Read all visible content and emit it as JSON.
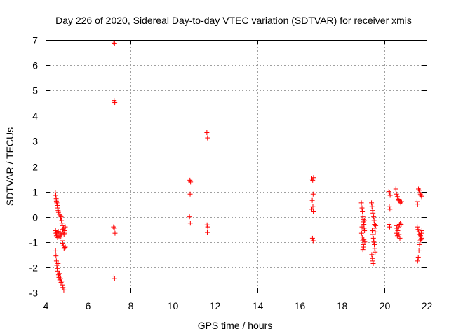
{
  "chart_data": {
    "type": "scatter",
    "title": "Day 226 of 2020, Sidereal Day-to-day VTEC variation (SDTVAR) for receiver xmis",
    "xlabel": "GPS time / hours",
    "ylabel": "SDTVAR / TECUs",
    "xlim": [
      4,
      22
    ],
    "ylim": [
      -3,
      7
    ],
    "xticks": [
      "4",
      "6",
      "8",
      "10",
      "12",
      "14",
      "16",
      "18",
      "20",
      "22"
    ],
    "yticks": [
      "-3",
      "-2",
      "-1",
      "0",
      "1",
      "2",
      "3",
      "4",
      "5",
      "6",
      "7"
    ],
    "grid": true,
    "marker": "+",
    "color": "#ff0000",
    "series": [
      {
        "name": "SDTVAR",
        "points": [
          [
            4.46,
            0.95
          ],
          [
            4.48,
            0.85
          ],
          [
            4.5,
            0.72
          ],
          [
            4.51,
            0.62
          ],
          [
            4.53,
            0.55
          ],
          [
            4.55,
            0.45
          ],
          [
            4.57,
            0.35
          ],
          [
            4.59,
            0.25
          ],
          [
            4.61,
            0.18
          ],
          [
            4.47,
            -0.55
          ],
          [
            4.49,
            -0.65
          ],
          [
            4.51,
            -0.75
          ],
          [
            4.53,
            -0.62
          ],
          [
            4.56,
            -0.82
          ],
          [
            4.58,
            -0.7
          ],
          [
            4.6,
            -0.58
          ],
          [
            4.63,
            -0.78
          ],
          [
            4.47,
            -1.35
          ],
          [
            4.49,
            -1.55
          ],
          [
            4.51,
            -1.75
          ],
          [
            4.53,
            -1.92
          ],
          [
            4.55,
            -2.05
          ],
          [
            4.57,
            -2.15
          ],
          [
            4.59,
            -1.85
          ],
          [
            4.61,
            -2.3
          ],
          [
            4.63,
            -2.4
          ],
          [
            4.65,
            -2.25
          ],
          [
            4.67,
            -2.5
          ],
          [
            4.69,
            -2.35
          ],
          [
            4.71,
            -2.45
          ],
          [
            4.73,
            -2.6
          ],
          [
            4.76,
            -2.55
          ],
          [
            4.79,
            -2.7
          ],
          [
            4.82,
            -2.8
          ],
          [
            4.86,
            -2.9
          ],
          [
            4.66,
            0.1
          ],
          [
            4.69,
            0.05
          ],
          [
            4.71,
            -0.05
          ],
          [
            4.73,
            0.0
          ],
          [
            4.75,
            -0.15
          ],
          [
            4.77,
            -0.25
          ],
          [
            4.79,
            -0.35
          ],
          [
            4.81,
            -0.5
          ],
          [
            4.83,
            -0.6
          ],
          [
            4.85,
            -0.45
          ],
          [
            4.87,
            -0.7
          ],
          [
            4.89,
            -0.55
          ],
          [
            4.91,
            -0.65
          ],
          [
            4.93,
            -0.4
          ],
          [
            4.67,
            -0.7
          ],
          [
            4.7,
            -0.65
          ],
          [
            4.72,
            -0.8
          ],
          [
            4.74,
            -0.72
          ],
          [
            4.78,
            -0.95
          ],
          [
            4.81,
            -1.05
          ],
          [
            4.84,
            -1.15
          ],
          [
            4.87,
            -1.25
          ],
          [
            4.9,
            -1.22
          ],
          [
            4.93,
            -1.2
          ],
          [
            7.22,
            6.88
          ],
          [
            7.26,
            6.85
          ],
          [
            7.24,
            4.6
          ],
          [
            7.27,
            4.52
          ],
          [
            7.21,
            -0.4
          ],
          [
            7.25,
            -0.45
          ],
          [
            7.28,
            -0.65
          ],
          [
            7.23,
            -2.35
          ],
          [
            7.26,
            -2.45
          ],
          [
            10.82,
            1.45
          ],
          [
            10.85,
            1.38
          ],
          [
            10.83,
            0.9
          ],
          [
            10.8,
            0.0
          ],
          [
            10.84,
            -0.25
          ],
          [
            11.62,
            3.33
          ],
          [
            11.65,
            3.12
          ],
          [
            11.63,
            -0.32
          ],
          [
            11.66,
            -0.4
          ],
          [
            11.64,
            -0.62
          ],
          [
            16.58,
            1.5
          ],
          [
            16.62,
            1.45
          ],
          [
            16.66,
            1.55
          ],
          [
            16.64,
            0.9
          ],
          [
            16.6,
            0.65
          ],
          [
            16.63,
            0.4
          ],
          [
            16.58,
            0.3
          ],
          [
            16.65,
            0.2
          ],
          [
            16.61,
            -0.85
          ],
          [
            16.64,
            -0.95
          ],
          [
            18.92,
            0.55
          ],
          [
            18.95,
            0.35
          ],
          [
            18.97,
            0.2
          ],
          [
            18.99,
            0.0
          ],
          [
            19.0,
            -0.1
          ],
          [
            19.02,
            -0.2
          ],
          [
            19.04,
            -0.3
          ],
          [
            19.05,
            -0.45
          ],
          [
            19.07,
            -0.55
          ],
          [
            18.93,
            -0.65
          ],
          [
            18.96,
            -0.8
          ],
          [
            18.98,
            -0.95
          ],
          [
            19.01,
            -1.1
          ],
          [
            19.03,
            -1.2
          ],
          [
            18.99,
            -1.3
          ],
          [
            19.04,
            -0.9
          ],
          [
            18.95,
            -0.4
          ],
          [
            19.06,
            -0.15
          ],
          [
            19.08,
            -1.0
          ],
          [
            19.4,
            0.55
          ],
          [
            19.42,
            0.4
          ],
          [
            19.45,
            0.25
          ],
          [
            19.47,
            0.15
          ],
          [
            19.5,
            0.0
          ],
          [
            19.52,
            -0.15
          ],
          [
            19.54,
            -0.3
          ],
          [
            19.56,
            -0.45
          ],
          [
            19.43,
            -0.55
          ],
          [
            19.46,
            -0.7
          ],
          [
            19.49,
            -0.85
          ],
          [
            19.51,
            -1.0
          ],
          [
            19.53,
            -1.1
          ],
          [
            19.55,
            -1.25
          ],
          [
            19.57,
            -1.4
          ],
          [
            19.41,
            -1.5
          ],
          [
            19.44,
            -1.65
          ],
          [
            19.46,
            -1.75
          ],
          [
            19.48,
            -1.85
          ],
          [
            19.58,
            -0.6
          ],
          [
            19.6,
            -0.35
          ],
          [
            20.22,
            1.0
          ],
          [
            20.25,
            0.95
          ],
          [
            20.28,
            0.85
          ],
          [
            20.24,
            0.4
          ],
          [
            20.27,
            0.3
          ],
          [
            20.23,
            -0.3
          ],
          [
            20.26,
            -0.4
          ],
          [
            20.55,
            1.1
          ],
          [
            20.58,
            0.9
          ],
          [
            20.62,
            0.8
          ],
          [
            20.66,
            0.7
          ],
          [
            20.7,
            0.65
          ],
          [
            20.74,
            0.6
          ],
          [
            20.78,
            0.55
          ],
          [
            20.82,
            0.6
          ],
          [
            20.56,
            -0.35
          ],
          [
            20.6,
            -0.45
          ],
          [
            20.64,
            -0.55
          ],
          [
            20.68,
            -0.4
          ],
          [
            20.72,
            -0.3
          ],
          [
            20.76,
            -0.25
          ],
          [
            20.8,
            -0.3
          ],
          [
            20.58,
            -0.65
          ],
          [
            20.62,
            -0.75
          ],
          [
            20.66,
            -0.8
          ],
          [
            20.7,
            -0.7
          ],
          [
            20.74,
            -0.85
          ],
          [
            21.55,
            0.6
          ],
          [
            21.58,
            0.5
          ],
          [
            21.62,
            1.1
          ],
          [
            21.65,
            1.05
          ],
          [
            21.68,
            0.95
          ],
          [
            21.71,
            0.9
          ],
          [
            21.74,
            0.85
          ],
          [
            21.77,
            0.8
          ],
          [
            21.56,
            -0.4
          ],
          [
            21.6,
            -0.5
          ],
          [
            21.63,
            -0.6
          ],
          [
            21.66,
            -0.7
          ],
          [
            21.69,
            -0.8
          ],
          [
            21.72,
            -0.75
          ],
          [
            21.75,
            -0.65
          ],
          [
            21.78,
            -0.55
          ],
          [
            21.58,
            -1.75
          ],
          [
            21.61,
            -1.6
          ],
          [
            21.64,
            -1.35
          ],
          [
            21.67,
            -1.1
          ],
          [
            21.7,
            -0.95
          ],
          [
            21.73,
            -0.9
          ],
          [
            21.76,
            -0.85
          ]
        ]
      }
    ]
  }
}
